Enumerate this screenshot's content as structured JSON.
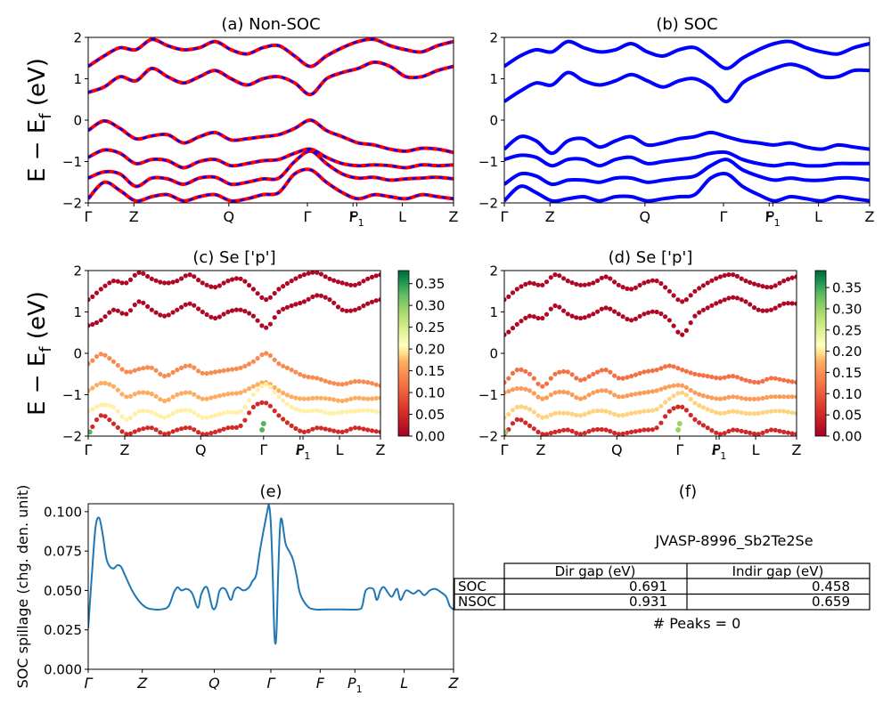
{
  "figure": {
    "ylabel_band": "E − E_f (eV)",
    "ylabel_band_parts": [
      "E − E",
      "f",
      " (eV)"
    ]
  },
  "chart_data": [
    {
      "id": "a",
      "type": "line",
      "title": "(a) Non-SOC",
      "ylim": [
        -2,
        2
      ],
      "yticks": [
        "−2",
        "−1",
        "0",
        "1",
        "2"
      ],
      "xticks": [
        "Γ",
        "Z",
        "Q",
        "Γ",
        "F",
        "P1",
        "L",
        "Z"
      ],
      "series": [
        {
          "color": "#ff0000",
          "dashed": false,
          "bands": [
            {
              "values": [
                0.67,
                0.8,
                1.05,
                0.95,
                1.25,
                1.05,
                0.9,
                1.05,
                1.2,
                1.0,
                0.85,
                1.0,
                1.05,
                0.9,
                0.62,
                1.0,
                1.15,
                1.25,
                1.4,
                1.3,
                1.05,
                1.05,
                1.2,
                1.3
              ]
            },
            {
              "values": [
                1.3,
                1.55,
                1.75,
                1.7,
                1.95,
                1.8,
                1.7,
                1.75,
                1.9,
                1.7,
                1.6,
                1.75,
                1.8,
                1.55,
                1.3,
                1.55,
                1.75,
                1.9,
                1.95,
                1.8,
                1.7,
                1.65,
                1.8,
                1.9
              ]
            },
            {
              "values": [
                -0.25,
                -0.02,
                -0.2,
                -0.45,
                -0.38,
                -0.35,
                -0.55,
                -0.4,
                -0.3,
                -0.48,
                -0.45,
                -0.4,
                -0.35,
                -0.2,
                0.0,
                -0.25,
                -0.4,
                -0.55,
                -0.6,
                -0.7,
                -0.75,
                -0.68,
                -0.7,
                -0.78
              ]
            },
            {
              "values": [
                -0.9,
                -0.72,
                -0.8,
                -1.05,
                -0.95,
                -0.98,
                -1.15,
                -1.0,
                -0.95,
                -1.1,
                -1.05,
                -0.98,
                -0.95,
                -0.8,
                -0.7,
                -0.9,
                -1.05,
                -1.1,
                -1.08,
                -1.1,
                -1.15,
                -1.08,
                -1.1,
                -1.08
              ]
            },
            {
              "values": [
                -1.4,
                -1.25,
                -1.3,
                -1.6,
                -1.4,
                -1.42,
                -1.55,
                -1.4,
                -1.38,
                -1.55,
                -1.5,
                -1.42,
                -1.4,
                -1.0,
                -0.75,
                -1.05,
                -1.3,
                -1.4,
                -1.38,
                -1.45,
                -1.42,
                -1.4,
                -1.38,
                -1.42
              ]
            },
            {
              "values": [
                -1.9,
                -1.5,
                -1.7,
                -1.95,
                -1.85,
                -1.8,
                -1.95,
                -1.85,
                -1.8,
                -1.95,
                -1.9,
                -1.8,
                -1.75,
                -1.3,
                -1.2,
                -1.5,
                -1.75,
                -1.9,
                -1.8,
                -1.85,
                -1.9,
                -1.8,
                -1.85,
                -1.9
              ]
            }
          ]
        },
        {
          "color": "#0000ff",
          "dashed": true,
          "same_as_previous": true
        }
      ]
    },
    {
      "id": "b",
      "type": "line",
      "title": "(b) SOC",
      "ylim": [
        -2,
        2
      ],
      "yticks": [
        "−2",
        "−1",
        "0",
        "1",
        "2"
      ],
      "xticks": [
        "Γ",
        "Z",
        "Q",
        "Γ",
        "F",
        "P1",
        "L",
        "Z"
      ],
      "series": [
        {
          "color": "#0000ff",
          "dashed": false,
          "bands": [
            {
              "values": [
                0.45,
                0.7,
                0.9,
                0.85,
                1.15,
                0.95,
                0.85,
                0.95,
                1.1,
                0.95,
                0.8,
                0.95,
                1.0,
                0.8,
                0.45,
                0.9,
                1.1,
                1.25,
                1.35,
                1.25,
                1.05,
                1.05,
                1.2,
                1.2
              ]
            },
            {
              "values": [
                1.3,
                1.55,
                1.7,
                1.65,
                1.9,
                1.75,
                1.65,
                1.7,
                1.85,
                1.65,
                1.55,
                1.7,
                1.75,
                1.5,
                1.25,
                1.5,
                1.7,
                1.85,
                1.9,
                1.75,
                1.65,
                1.6,
                1.75,
                1.85
              ]
            },
            {
              "values": [
                -0.7,
                -0.4,
                -0.5,
                -0.8,
                -0.5,
                -0.45,
                -0.65,
                -0.5,
                -0.4,
                -0.6,
                -0.55,
                -0.45,
                -0.4,
                -0.3,
                -0.4,
                -0.5,
                -0.55,
                -0.6,
                -0.55,
                -0.65,
                -0.7,
                -0.6,
                -0.65,
                -0.7
              ]
            },
            {
              "values": [
                -0.95,
                -0.85,
                -0.9,
                -1.1,
                -0.95,
                -0.95,
                -1.1,
                -0.95,
                -0.9,
                -1.05,
                -1.0,
                -0.95,
                -0.9,
                -0.8,
                -0.78,
                -0.95,
                -1.05,
                -1.1,
                -1.05,
                -1.1,
                -1.1,
                -1.05,
                -1.05,
                -1.05
              ]
            },
            {
              "values": [
                -1.55,
                -1.3,
                -1.35,
                -1.55,
                -1.45,
                -1.45,
                -1.5,
                -1.4,
                -1.4,
                -1.5,
                -1.45,
                -1.4,
                -1.35,
                -1.1,
                -0.95,
                -1.2,
                -1.35,
                -1.45,
                -1.4,
                -1.45,
                -1.45,
                -1.4,
                -1.4,
                -1.45
              ]
            },
            {
              "values": [
                -1.95,
                -1.6,
                -1.75,
                -1.95,
                -1.9,
                -1.85,
                -1.95,
                -1.85,
                -1.85,
                -1.95,
                -1.9,
                -1.85,
                -1.8,
                -1.4,
                -1.3,
                -1.6,
                -1.8,
                -1.95,
                -1.85,
                -1.9,
                -1.95,
                -1.85,
                -1.9,
                -1.95
              ]
            }
          ]
        }
      ]
    },
    {
      "id": "c",
      "type": "scatter",
      "title": "(c)  Se ['p']",
      "ylim": [
        -2,
        2
      ],
      "yticks": [
        "−2",
        "−1",
        "0",
        "1",
        "2"
      ],
      "xticks": [
        "Γ",
        "Z",
        "Q",
        "Γ",
        "F",
        "P1",
        "L",
        "Z"
      ],
      "colorbar": {
        "min": 0.0,
        "max": 0.38,
        "ticks": [
          "0.00",
          "0.05",
          "0.10",
          "0.15",
          "0.20",
          "0.25",
          "0.30",
          "0.35"
        ],
        "tick_values": [
          0,
          0.05,
          0.1,
          0.15,
          0.2,
          0.25,
          0.3,
          0.35
        ],
        "colormap": "RdYlGn"
      },
      "band_weights": [
        0.01,
        0.01,
        0.14,
        0.17,
        0.2,
        0.05
      ],
      "spot_weight": 0.33,
      "series_ref": "a"
    },
    {
      "id": "d",
      "type": "scatter",
      "title": "(d) Se ['p']",
      "ylim": [
        -2,
        2
      ],
      "yticks": [
        "−2",
        "−1",
        "0",
        "1",
        "2"
      ],
      "xticks": [
        "Γ",
        "Z",
        "Q",
        "Γ",
        "F",
        "P1",
        "L",
        "Z"
      ],
      "colorbar": {
        "min": 0.0,
        "max": 0.39,
        "ticks": [
          "0.00",
          "0.05",
          "0.10",
          "0.15",
          "0.20",
          "0.25",
          "0.30",
          "0.35"
        ],
        "tick_values": [
          0,
          0.05,
          0.1,
          0.15,
          0.2,
          0.25,
          0.3,
          0.35
        ],
        "colormap": "RdYlGn"
      },
      "band_weights": [
        0.01,
        0.01,
        0.12,
        0.16,
        0.19,
        0.05
      ],
      "spot_weight": 0.3,
      "series_ref": "b"
    },
    {
      "id": "e",
      "type": "line",
      "title": "(e)",
      "ylabel": "SOC spillage (chg. den. unit)",
      "ylim": [
        0,
        0.105
      ],
      "yticks": [
        "0.000",
        "0.025",
        "0.050",
        "0.075",
        "0.100"
      ],
      "ytick_values": [
        0,
        0.025,
        0.05,
        0.075,
        0.1
      ],
      "xticks": [
        "Γ",
        "Z",
        "Q",
        "Γ",
        "F",
        "P1",
        "L",
        "Z"
      ],
      "xtick_positions": [
        0,
        0.148,
        0.345,
        0.5,
        0.635,
        0.73,
        0.865,
        1.0
      ],
      "color": "#1f77b4",
      "x": [
        0,
        0.01,
        0.02,
        0.03,
        0.04,
        0.05,
        0.06,
        0.07,
        0.08,
        0.09,
        0.1,
        0.12,
        0.14,
        0.16,
        0.18,
        0.2,
        0.22,
        0.235,
        0.245,
        0.255,
        0.27,
        0.285,
        0.3,
        0.31,
        0.325,
        0.34,
        0.35,
        0.36,
        0.375,
        0.39,
        0.4,
        0.41,
        0.425,
        0.44,
        0.45,
        0.46,
        0.47,
        0.48,
        0.49,
        0.495,
        0.5,
        0.505,
        0.51,
        0.515,
        0.52,
        0.525,
        0.53,
        0.54,
        0.55,
        0.56,
        0.57,
        0.58,
        0.6,
        0.62,
        0.65,
        0.68,
        0.7,
        0.74,
        0.75,
        0.76,
        0.78,
        0.79,
        0.8,
        0.81,
        0.83,
        0.845,
        0.855,
        0.87,
        0.89,
        0.905,
        0.92,
        0.935,
        0.95,
        0.965,
        0.98,
        0.99,
        1.0
      ],
      "values": [
        0.026,
        0.06,
        0.09,
        0.096,
        0.085,
        0.07,
        0.065,
        0.064,
        0.066,
        0.065,
        0.06,
        0.05,
        0.043,
        0.039,
        0.038,
        0.038,
        0.04,
        0.049,
        0.052,
        0.05,
        0.051,
        0.048,
        0.039,
        0.048,
        0.052,
        0.039,
        0.04,
        0.05,
        0.051,
        0.044,
        0.05,
        0.052,
        0.05,
        0.052,
        0.056,
        0.06,
        0.075,
        0.088,
        0.1,
        0.104,
        0.092,
        0.06,
        0.021,
        0.021,
        0.06,
        0.09,
        0.095,
        0.08,
        0.075,
        0.07,
        0.06,
        0.048,
        0.04,
        0.038,
        0.038,
        0.038,
        0.038,
        0.038,
        0.04,
        0.05,
        0.051,
        0.044,
        0.05,
        0.052,
        0.046,
        0.051,
        0.044,
        0.05,
        0.048,
        0.05,
        0.047,
        0.05,
        0.051,
        0.049,
        0.046,
        0.04,
        0.038
      ]
    },
    {
      "id": "f",
      "type": "table",
      "title": "(f)",
      "caption": "JVASP-8996_Sb2Te2Se",
      "columns": [
        "Dir gap (eV)",
        "Indir gap (eV)"
      ],
      "rows": [
        {
          "label": "SOC",
          "cells": [
            "0.691",
            "0.458"
          ]
        },
        {
          "label": "NSOC",
          "cells": [
            "0.931",
            "0.659"
          ]
        }
      ],
      "footer": "# Peaks = 0"
    }
  ]
}
